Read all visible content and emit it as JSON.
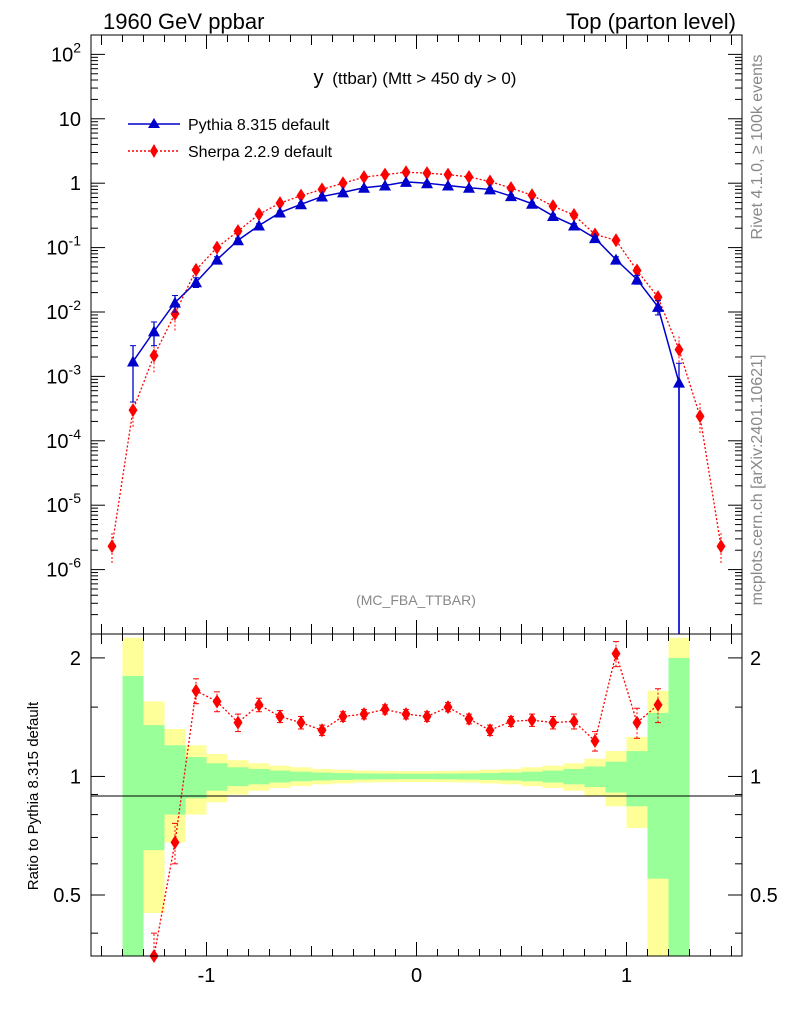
{
  "header": {
    "left": "1960 GeV ppbar",
    "right": "Top (parton level)"
  },
  "side": {
    "rivet": "Rivet 4.1.0, ≥ 100k events",
    "mcplots": "mcplots.cern.ch [arXiv:2401.10621]"
  },
  "chart_data": {
    "type": "line",
    "title_var": "y",
    "title_rest": "(ttbar) (Mtt > 450 dy > 0)",
    "tag": "(MC_FBA_TTBAR)",
    "xlim": [
      -1.55,
      1.55
    ],
    "ylim_log": [
      1e-07,
      200
    ],
    "ratio_ylim": [
      0.35,
      2.3
    ],
    "ylabel_ratio": "Ratio to Pythia 8.315 default",
    "x_ticks": [
      "-1",
      "0",
      "1"
    ],
    "y_ticks": [
      {
        "base": "10",
        "exp": "2"
      },
      {
        "base": "10",
        "exp": ""
      },
      {
        "base": "1",
        "exp": ""
      },
      {
        "base": "10",
        "exp": "-1"
      },
      {
        "base": "10",
        "exp": "-2"
      },
      {
        "base": "10",
        "exp": "-3"
      },
      {
        "base": "10",
        "exp": "-4"
      },
      {
        "base": "10",
        "exp": "-5"
      },
      {
        "base": "10",
        "exp": "-6"
      }
    ],
    "ratio_ticks": [
      "2",
      "1",
      "0.5"
    ],
    "bin_edges": [
      -1.4,
      -1.3,
      -1.2,
      -1.1,
      -1.0,
      -0.9,
      -0.8,
      -0.7,
      -0.6,
      -0.5,
      -0.4,
      -0.3,
      -0.2,
      -0.1,
      0.0,
      0.1,
      0.2,
      0.3,
      0.4,
      0.5,
      0.6,
      0.7,
      0.8,
      0.9,
      1.0,
      1.1,
      1.2,
      1.3
    ],
    "series": [
      {
        "name": "Pythia 8.315 default",
        "color": "#0000cc",
        "marker": "triangle",
        "x": [
          -1.35,
          -1.25,
          -1.15,
          -1.05,
          -0.95,
          -0.85,
          -0.75,
          -0.65,
          -0.55,
          -0.45,
          -0.35,
          -0.25,
          -0.15,
          -0.05,
          0.05,
          0.15,
          0.25,
          0.35,
          0.45,
          0.55,
          0.65,
          0.75,
          0.85,
          0.95,
          1.05,
          1.15,
          1.25
        ],
        "y": [
          0.0017,
          0.005,
          0.014,
          0.029,
          0.065,
          0.13,
          0.22,
          0.35,
          0.47,
          0.62,
          0.72,
          0.85,
          0.92,
          1.05,
          1.0,
          0.92,
          0.85,
          0.8,
          0.63,
          0.48,
          0.31,
          0.22,
          0.14,
          0.065,
          0.032,
          0.012,
          0.0008
        ],
        "err": [
          0.0013,
          0.002,
          0.004,
          0.005,
          0.007,
          0.01,
          0.015,
          0.02,
          0.025,
          0.03,
          0.03,
          0.035,
          0.035,
          0.04,
          0.04,
          0.035,
          0.035,
          0.035,
          0.03,
          0.025,
          0.02,
          0.015,
          0.01,
          0.007,
          0.005,
          0.003,
          0.0008
        ]
      },
      {
        "name": "Sherpa 2.2.9 default",
        "color": "#ff0000",
        "marker": "diamond",
        "x": [
          -1.45,
          -1.35,
          -1.25,
          -1.15,
          -1.05,
          -0.95,
          -0.85,
          -0.75,
          -0.65,
          -0.55,
          -0.45,
          -0.35,
          -0.25,
          -0.15,
          -0.05,
          0.05,
          0.15,
          0.25,
          0.35,
          0.45,
          0.55,
          0.65,
          0.75,
          0.85,
          0.95,
          1.05,
          1.15,
          1.25,
          1.35,
          1.45
        ],
        "y": [
          2.3e-06,
          0.0003,
          0.0021,
          0.0094,
          0.045,
          0.1,
          0.18,
          0.33,
          0.49,
          0.64,
          0.8,
          1.0,
          1.24,
          1.36,
          1.48,
          1.43,
          1.36,
          1.25,
          1.06,
          0.84,
          0.65,
          0.44,
          0.32,
          0.16,
          0.13,
          0.044,
          0.017,
          0.0026,
          0.00024,
          2.3e-06
        ]
      }
    ],
    "ratio_points": {
      "x": [
        -1.25,
        -1.15,
        -1.05,
        -0.95,
        -0.85,
        -0.75,
        -0.65,
        -0.55,
        -0.45,
        -0.35,
        -0.25,
        -0.15,
        -0.05,
        0.05,
        0.15,
        0.25,
        0.35,
        0.45,
        0.55,
        0.65,
        0.75,
        0.85,
        0.95,
        1.05,
        1.15
      ],
      "y": [
        0.35,
        0.68,
        1.65,
        1.55,
        1.37,
        1.52,
        1.42,
        1.37,
        1.31,
        1.42,
        1.44,
        1.48,
        1.44,
        1.42,
        1.5,
        1.4,
        1.31,
        1.38,
        1.39,
        1.37,
        1.38,
        1.23,
        2.05,
        1.37,
        1.52
      ],
      "err": [
        0.05,
        0.08,
        0.12,
        0.09,
        0.07,
        0.06,
        0.05,
        0.05,
        0.04,
        0.04,
        0.04,
        0.04,
        0.04,
        0.04,
        0.04,
        0.04,
        0.04,
        0.04,
        0.05,
        0.05,
        0.06,
        0.07,
        0.15,
        0.12,
        0.15
      ]
    },
    "bands": {
      "yellow": [
        1.25,
        0.55,
        0.32,
        0.2,
        0.14,
        0.1,
        0.08,
        0.065,
        0.055,
        0.045,
        0.04,
        0.035,
        0.033,
        0.032,
        0.032,
        0.033,
        0.035,
        0.04,
        0.045,
        0.055,
        0.065,
        0.08,
        0.11,
        0.16,
        0.26,
        0.65,
        1.25
      ],
      "green": [
        0.8,
        0.35,
        0.2,
        0.12,
        0.08,
        0.055,
        0.045,
        0.035,
        0.028,
        0.023,
        0.02,
        0.018,
        0.017,
        0.016,
        0.016,
        0.017,
        0.018,
        0.02,
        0.023,
        0.028,
        0.035,
        0.045,
        0.06,
        0.09,
        0.16,
        0.45,
        1.0
      ]
    }
  }
}
